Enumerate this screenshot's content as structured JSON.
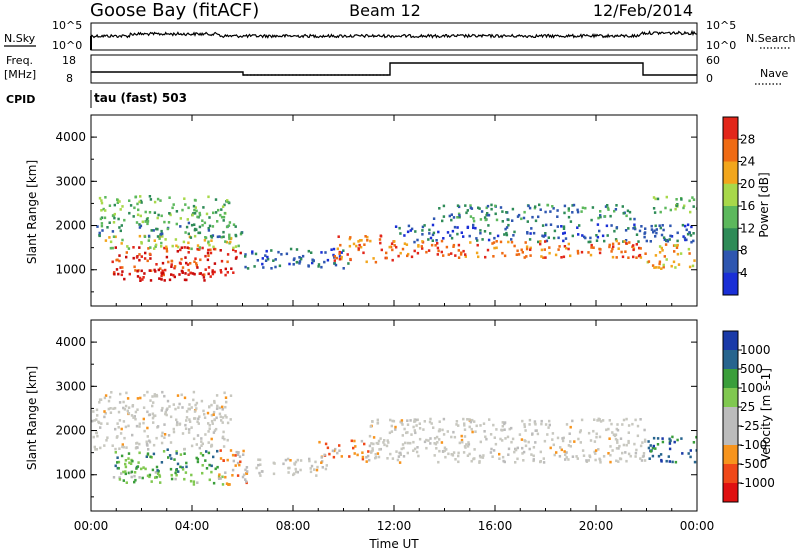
{
  "header": {
    "station": "Goose Bay (fitACF)",
    "beam": "Beam 12",
    "date": "12/Feb/2014"
  },
  "panels": {
    "nsky_label": "N.Sky",
    "nsearch_label": "N.Search",
    "noise_ticks": [
      "10^5",
      "10^0"
    ],
    "freq_label_1": "Freq.",
    "freq_label_2": "[MHz]",
    "freq_ticks": [
      "18",
      "8"
    ],
    "nave_label": "Nave",
    "nave_ticks": [
      "60",
      "0"
    ],
    "cpid_label": "CPID",
    "cpid_text": "tau (fast) 503"
  },
  "colors": {
    "power": [
      "#1a2fd6",
      "#2e56b0",
      "#2e8b57",
      "#5cb85c",
      "#a8d84a",
      "#f2a61c",
      "#ef6b14",
      "#e2261a",
      "#c80a0a"
    ],
    "velocity": [
      "#e01010",
      "#f04818",
      "#f7941d",
      "#bcbcbc",
      "#bcbcbc",
      "#80c850",
      "#3a9e3a",
      "#27648e",
      "#1a3aa8"
    ],
    "velocity_ground": "#c8c8c0"
  },
  "chart_data": [
    {
      "type": "heatmap",
      "name": "Power",
      "ylabel": "Slant Range [km]",
      "colorbar_label": "Power [dB]",
      "colorbar_ticks": [
        "4",
        "8",
        "12",
        "16",
        "20",
        "24",
        "28"
      ],
      "colorbar_range": [
        0,
        32
      ],
      "ylim": [
        180,
        4500
      ],
      "yticks": [
        1000,
        2000,
        3000,
        4000
      ],
      "xlim": [
        0,
        24
      ],
      "regions": [
        {
          "t": [
            0.8,
            5.9
          ],
          "r": [
            900,
            1550
          ],
          "level": 7
        },
        {
          "t": [
            1.0,
            5.0
          ],
          "r": [
            780,
            1050
          ],
          "level": 8
        },
        {
          "t": [
            0.5,
            6.0
          ],
          "r": [
            1500,
            1800
          ],
          "level": 4
        },
        {
          "t": [
            0.2,
            6.0
          ],
          "r": [
            1750,
            2100
          ],
          "level": 2
        },
        {
          "t": [
            0.3,
            5.5
          ],
          "r": [
            2100,
            2700
          ],
          "level": 3
        },
        {
          "t": [
            6.0,
            10.2
          ],
          "r": [
            1050,
            1500
          ],
          "level": 1
        },
        {
          "t": [
            9.6,
            12.0
          ],
          "r": [
            1200,
            1800
          ],
          "level": 6
        },
        {
          "t": [
            12.0,
            24.0
          ],
          "r": [
            1650,
            2050
          ],
          "level": 1
        },
        {
          "t": [
            12.0,
            22.0
          ],
          "r": [
            1300,
            1680
          ],
          "level": 6
        },
        {
          "t": [
            13.5,
            21.5
          ],
          "r": [
            2100,
            2500
          ],
          "level": 2
        },
        {
          "t": [
            22.0,
            24.0
          ],
          "r": [
            1050,
            1600
          ],
          "level": 5
        },
        {
          "t": [
            22.2,
            24.0
          ],
          "r": [
            2300,
            2700
          ],
          "level": 3
        }
      ]
    },
    {
      "type": "heatmap",
      "name": "Velocity",
      "ylabel": "Slant Range [km]",
      "xlabel": "Time UT",
      "colorbar_label": "Velocity [m s-1]",
      "colorbar_ticks": [
        "1000",
        "500",
        "100",
        "25",
        "-25",
        "-100",
        "-500",
        "-1000"
      ],
      "ylim": [
        180,
        4500
      ],
      "yticks": [
        1000,
        2000,
        3000,
        4000
      ],
      "xlim": [
        0,
        24
      ],
      "xticks": [
        "00:00",
        "04:00",
        "08:00",
        "12:00",
        "16:00",
        "20:00",
        "00:00"
      ],
      "regions": [
        {
          "t": [
            0.8,
            5.5
          ],
          "r": [
            800,
            1100
          ],
          "level": 5
        },
        {
          "t": [
            0.9,
            5.0
          ],
          "r": [
            1100,
            1600
          ],
          "level": 6
        },
        {
          "t": [
            5.0,
            6.2
          ],
          "r": [
            800,
            1600
          ],
          "level": 2
        },
        {
          "t": [
            0.0,
            5.5
          ],
          "r": [
            1600,
            2900
          ],
          "level": 3
        },
        {
          "t": [
            6.0,
            9.5
          ],
          "r": [
            1000,
            1400
          ],
          "level": 3
        },
        {
          "t": [
            9.0,
            11.0
          ],
          "r": [
            1300,
            1800
          ],
          "level": 2
        },
        {
          "t": [
            11.0,
            22.0
          ],
          "r": [
            1300,
            2300
          ],
          "level": 3
        },
        {
          "t": [
            22.0,
            24.0
          ],
          "r": [
            1300,
            1900
          ],
          "level": 7
        }
      ]
    }
  ]
}
